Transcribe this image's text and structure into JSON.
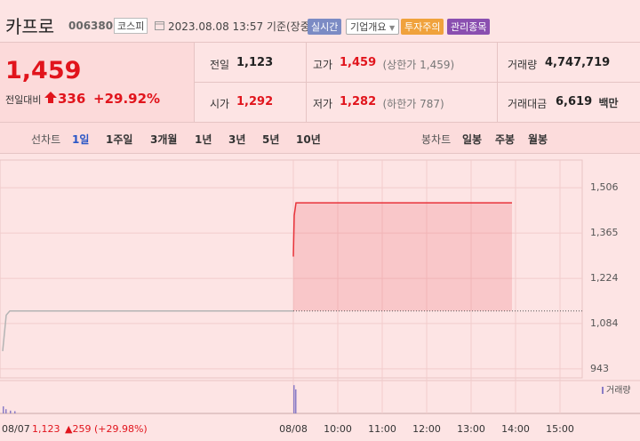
{
  "header": {
    "name": "카프로",
    "code": "006380",
    "market": "코스피",
    "timestamp": "2023.08.08 13:57 기준(장중)",
    "buttons": [
      "실시간",
      "기업개요",
      "투자주의",
      "관리종목"
    ]
  },
  "quote": {
    "price": "1,459",
    "change_label": "전일대비",
    "change": "336",
    "change_pct": "+29.92%",
    "fields": [
      {
        "label": "전일",
        "value": "1,123"
      },
      {
        "label": "고가",
        "value": "1,459",
        "note": "(상한가 1,459)"
      },
      {
        "label": "거래량",
        "value": "4,747,719"
      },
      {
        "label": "시가",
        "value": "1,292"
      },
      {
        "label": "저가",
        "value": "1,282",
        "note": "(하한가 787)"
      },
      {
        "label": "거래대금",
        "value": "6,619",
        "unit": "백만"
      }
    ]
  },
  "tabs": {
    "line_label": "선차트",
    "line": [
      "1일",
      "1주일",
      "3개월",
      "1년",
      "3년",
      "5년",
      "10년"
    ],
    "candle_label": "봉차트",
    "candle": [
      "일봉",
      "주봉",
      "월봉"
    ]
  },
  "chart": {
    "type": "line",
    "xlim": [
      2.4,
      15.5
    ],
    "xticks": [
      {
        "value": 2.4,
        "label": "08/07"
      },
      {
        "value": 9,
        "label": "08/08"
      },
      {
        "value": 10,
        "label": "10:00"
      },
      {
        "value": 11,
        "label": "11:00"
      },
      {
        "value": 12,
        "label": "12:00"
      },
      {
        "value": 13,
        "label": "13:00"
      },
      {
        "value": 14,
        "label": "14:00"
      },
      {
        "value": 15,
        "label": "15:00"
      }
    ],
    "ylim": [
      915,
      1592
    ],
    "yticks": [
      {
        "value": 1506,
        "label": "1,506"
      },
      {
        "value": 1365,
        "label": "1,365"
      },
      {
        "value": 1224,
        "label": "1,224"
      },
      {
        "value": 1084,
        "label": "1,084"
      },
      943
    ],
    "grid": true,
    "series": [
      {
        "color": "#b4b4b4",
        "x": [
          2.46,
          2.54,
          2.62,
          9.0
        ],
        "values": [
          998,
          1110,
          1123,
          1123
        ]
      },
      {
        "color": "#e8333a",
        "x": [
          9.0,
          9.02,
          9.06,
          13.92
        ],
        "values": [
          1292,
          1420,
          1459,
          1459
        ]
      }
    ],
    "reference": 1123,
    "volume": {
      "legend": "거래량",
      "color": "#8a7cc6",
      "ylim": [
        0,
        110
      ],
      "x": [
        2.46,
        2.52,
        2.62,
        2.72,
        9.0,
        9.04
      ],
      "values": [
        25,
        15,
        10,
        8,
        100,
        85
      ]
    },
    "footer": {
      "close": "1,123",
      "change": "▲259 (+29.98%)"
    }
  }
}
